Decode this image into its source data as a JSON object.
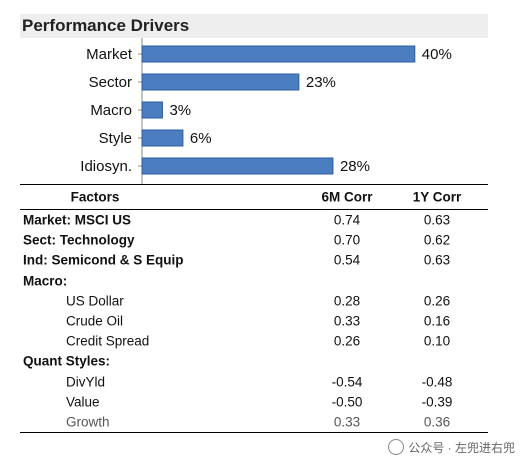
{
  "header": {
    "title": "Performance Drivers"
  },
  "chart_data": {
    "type": "bar",
    "orientation": "horizontal",
    "categories": [
      "Market",
      "Sector",
      "Macro",
      "Style",
      "Idiosyn."
    ],
    "values": [
      40,
      23,
      3,
      6,
      28
    ],
    "value_suffix": "%",
    "xlim": [
      0,
      44
    ],
    "grid": false,
    "bar_color": "#4a7ec0",
    "bar_edge_color": "#2f5f9e"
  },
  "table": {
    "columns": [
      "Factors",
      "6M Corr",
      "1Y Corr"
    ],
    "rows": [
      {
        "prefix": "Market:",
        "label": " MSCI US",
        "m6": "0.74",
        "y1": "0.63",
        "indent": false
      },
      {
        "prefix": "Sect:",
        "label": " Technology",
        "m6": "0.70",
        "y1": "0.62",
        "indent": false
      },
      {
        "prefix": "Ind:",
        "label": " Semicond & S Equip",
        "m6": "0.54",
        "y1": "0.63",
        "indent": false
      },
      {
        "prefix": "Macro:",
        "label": "",
        "m6": "",
        "y1": "",
        "indent": false
      },
      {
        "prefix": "",
        "label": "US Dollar",
        "m6": "0.28",
        "y1": "0.26",
        "indent": true
      },
      {
        "prefix": "",
        "label": "Crude Oil",
        "m6": "0.33",
        "y1": "0.16",
        "indent": true
      },
      {
        "prefix": "",
        "label": "Credit Spread",
        "m6": "0.26",
        "y1": "0.10",
        "indent": true
      },
      {
        "prefix": "Quant Styles:",
        "label": "",
        "m6": "",
        "y1": "",
        "indent": false
      },
      {
        "prefix": "",
        "label": "DivYld",
        "m6": "-0.54",
        "y1": "-0.48",
        "indent": true
      },
      {
        "prefix": "",
        "label": "Value",
        "m6": "-0.50",
        "y1": "-0.39",
        "indent": true
      },
      {
        "prefix": "",
        "label": "Growth",
        "m6": "0.33",
        "y1": "0.36",
        "indent": true
      }
    ]
  },
  "watermark": {
    "text": "公众号 · 左兜进右兜",
    "icon": "wechat-icon"
  }
}
